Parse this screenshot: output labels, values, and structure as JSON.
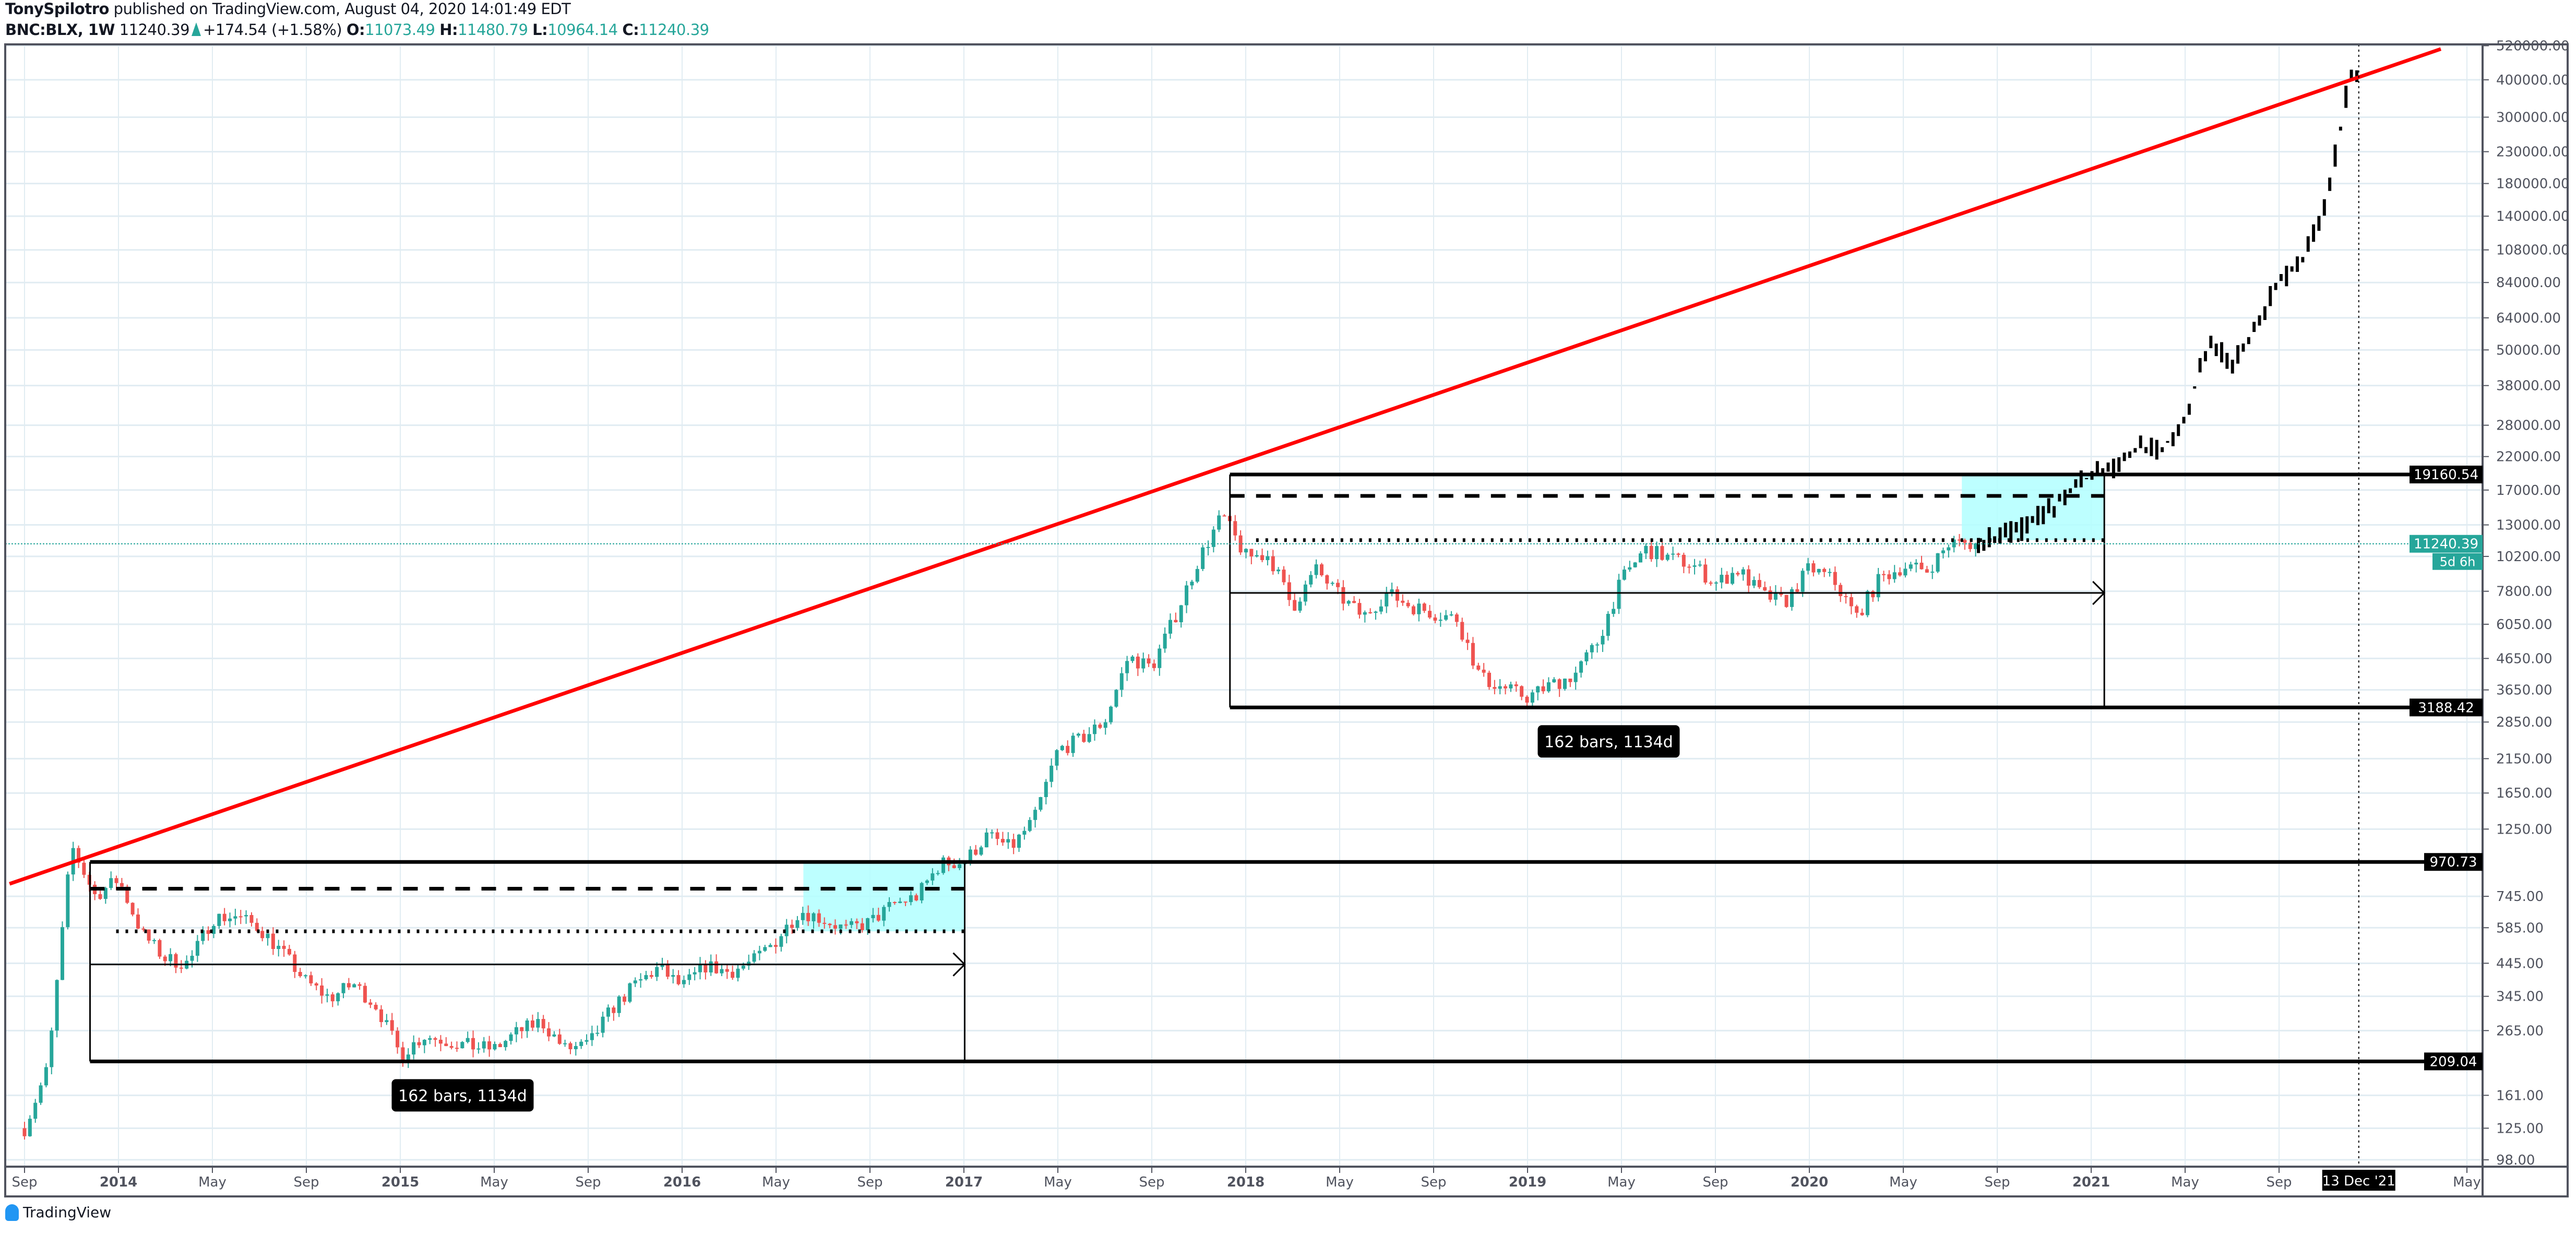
{
  "header": {
    "author": "TonySpilotro",
    "published": "published on TradingView.com, August 04, 2020 14:01:49 EDT",
    "symbol": "BNC:BLX, 1W",
    "last": "11240.39",
    "change": "+174.54 (+1.58%)",
    "open_label": "O:",
    "open": "11073.49",
    "high_label": "H:",
    "high": "11480.79",
    "low_label": "L:",
    "low": "10964.14",
    "close_label": "C:",
    "close": "11240.39"
  },
  "footer": {
    "brand": "TradingView"
  },
  "colors": {
    "up": "#26a69a",
    "down": "#ef5350",
    "projection": "#000000",
    "trendline": "#ff0000",
    "highlight": "#b2ffff",
    "grid": "#e1ecf2",
    "axis": "#50535e"
  },
  "chart_data": {
    "type": "candlestick",
    "scale": "log",
    "grid": true,
    "ylim": [
      98,
      520000
    ],
    "price_ticks": [
      "520000.00",
      "400000.00",
      "300000.00",
      "230000.00",
      "180000.00",
      "140000.00",
      "108000.00",
      "84000.00",
      "64000.00",
      "50000.00",
      "38000.00",
      "28000.00",
      "22000.00",
      "17000.00",
      "13000.00",
      "10200.00",
      "7800.00",
      "6050.00",
      "4650.00",
      "3650.00",
      "2850.00",
      "2150.00",
      "1650.00",
      "1250.00",
      "745.00",
      "585.00",
      "445.00",
      "345.00",
      "265.00",
      "161.00",
      "125.00",
      "98.00"
    ],
    "time_ticks": [
      {
        "label": "Sep",
        "date": "2013-09-01"
      },
      {
        "label": "2014",
        "date": "2014-01-01"
      },
      {
        "label": "May",
        "date": "2014-05-01"
      },
      {
        "label": "Sep",
        "date": "2014-09-01"
      },
      {
        "label": "2015",
        "date": "2015-01-01"
      },
      {
        "label": "May",
        "date": "2015-05-01"
      },
      {
        "label": "Sep",
        "date": "2015-09-01"
      },
      {
        "label": "2016",
        "date": "2016-01-01"
      },
      {
        "label": "May",
        "date": "2016-05-01"
      },
      {
        "label": "Sep",
        "date": "2016-09-01"
      },
      {
        "label": "2017",
        "date": "2017-01-01"
      },
      {
        "label": "May",
        "date": "2017-05-01"
      },
      {
        "label": "Sep",
        "date": "2017-09-01"
      },
      {
        "label": "2018",
        "date": "2018-01-01"
      },
      {
        "label": "May",
        "date": "2018-05-01"
      },
      {
        "label": "Sep",
        "date": "2018-09-01"
      },
      {
        "label": "2019",
        "date": "2019-01-01"
      },
      {
        "label": "May",
        "date": "2019-05-01"
      },
      {
        "label": "Sep",
        "date": "2019-09-01"
      },
      {
        "label": "2020",
        "date": "2020-01-01"
      },
      {
        "label": "May",
        "date": "2020-05-01"
      },
      {
        "label": "Sep",
        "date": "2020-09-01"
      },
      {
        "label": "2021",
        "date": "2021-01-01"
      },
      {
        "label": "May",
        "date": "2021-05-01"
      },
      {
        "label": "Sep",
        "date": "2021-09-01"
      },
      {
        "label": "May",
        "date": "2022-05-01"
      }
    ],
    "crosshair_date": {
      "label": "13 Dec '21",
      "date": "2021-12-13"
    },
    "monthly_closes": [
      [
        "2013-09",
        125
      ],
      [
        "2013-10",
        200
      ],
      [
        "2013-11",
        1100
      ],
      [
        "2013-12",
        750
      ],
      [
        "2014-01",
        850
      ],
      [
        "2014-02",
        560
      ],
      [
        "2014-03",
        460
      ],
      [
        "2014-04",
        445
      ],
      [
        "2014-05",
        630
      ],
      [
        "2014-06",
        640
      ],
      [
        "2014-07",
        585
      ],
      [
        "2014-08",
        480
      ],
      [
        "2014-09",
        385
      ],
      [
        "2014-10",
        340
      ],
      [
        "2014-11",
        380
      ],
      [
        "2014-12",
        320
      ],
      [
        "2015-01",
        220
      ],
      [
        "2015-02",
        255
      ],
      [
        "2015-03",
        245
      ],
      [
        "2015-04",
        235
      ],
      [
        "2015-05",
        230
      ],
      [
        "2015-06",
        262
      ],
      [
        "2015-07",
        285
      ],
      [
        "2015-08",
        230
      ],
      [
        "2015-09",
        236
      ],
      [
        "2015-10",
        313
      ],
      [
        "2015-11",
        377
      ],
      [
        "2015-12",
        430
      ],
      [
        "2016-01",
        370
      ],
      [
        "2016-02",
        437
      ],
      [
        "2016-03",
        416
      ],
      [
        "2016-04",
        450
      ],
      [
        "2016-05",
        530
      ],
      [
        "2016-06",
        670
      ],
      [
        "2016-07",
        625
      ],
      [
        "2016-08",
        575
      ],
      [
        "2016-09",
        610
      ],
      [
        "2016-10",
        700
      ],
      [
        "2016-11",
        745
      ],
      [
        "2016-12",
        960
      ],
      [
        "2017-01",
        970
      ],
      [
        "2017-02",
        1190
      ],
      [
        "2017-03",
        1080
      ],
      [
        "2017-04",
        1350
      ],
      [
        "2017-05",
        2300
      ],
      [
        "2017-06",
        2500
      ],
      [
        "2017-07",
        2870
      ],
      [
        "2017-08",
        4700
      ],
      [
        "2017-09",
        4340
      ],
      [
        "2017-10",
        6450
      ],
      [
        "2017-11",
        10000
      ],
      [
        "2017-12",
        14000
      ],
      [
        "2018-01",
        10200
      ],
      [
        "2018-02",
        10300
      ],
      [
        "2018-03",
        6900
      ],
      [
        "2018-04",
        9200
      ],
      [
        "2018-05",
        7500
      ],
      [
        "2018-06",
        6400
      ],
      [
        "2018-07",
        7700
      ],
      [
        "2018-08",
        7000
      ],
      [
        "2018-09",
        6600
      ],
      [
        "2018-10",
        6300
      ],
      [
        "2018-11",
        4000
      ],
      [
        "2018-12",
        3700
      ],
      [
        "2019-01",
        3450
      ],
      [
        "2019-02",
        3800
      ],
      [
        "2019-03",
        4100
      ],
      [
        "2019-04",
        5300
      ],
      [
        "2019-05",
        8500
      ],
      [
        "2019-06",
        10800
      ],
      [
        "2019-07",
        10100
      ],
      [
        "2019-08",
        9600
      ],
      [
        "2019-09",
        8300
      ],
      [
        "2019-10",
        9200
      ],
      [
        "2019-11",
        7550
      ],
      [
        "2019-12",
        7200
      ],
      [
        "2020-01",
        9350
      ],
      [
        "2020-02",
        8550
      ],
      [
        "2020-03",
        6400
      ],
      [
        "2020-04",
        8600
      ],
      [
        "2020-05",
        9450
      ],
      [
        "2020-06",
        9150
      ],
      [
        "2020-07",
        11350
      ],
      [
        "2020-08",
        11240
      ]
    ],
    "projection_monthly": [
      [
        "2020-08",
        11240
      ],
      [
        "2020-09",
        11800
      ],
      [
        "2020-10",
        12500
      ],
      [
        "2020-11",
        14000
      ],
      [
        "2020-12",
        16500
      ],
      [
        "2021-01",
        19000
      ],
      [
        "2021-02",
        20000
      ],
      [
        "2021-03",
        24000
      ],
      [
        "2021-04",
        23000
      ],
      [
        "2021-05",
        30000
      ],
      [
        "2021-06",
        52000
      ],
      [
        "2021-07",
        45000
      ],
      [
        "2021-08",
        60000
      ],
      [
        "2021-09",
        85000
      ],
      [
        "2021-10",
        100000
      ],
      [
        "2021-11",
        150000
      ],
      [
        "2021-12",
        400000
      ]
    ],
    "current_price": {
      "value": 11240.39,
      "label": "11240.39",
      "countdown": "5d 6h"
    },
    "trendline": {
      "from": [
        "2013-08-12",
        820
      ],
      "to": [
        "2022-03-28",
        507000
      ]
    },
    "ranges": [
      {
        "start": "2013-11-25",
        "end": "2017-01-02",
        "top": 970.73,
        "bottom": 209.04,
        "top_label": "970.73",
        "bottom_label": "209.04",
        "dashed": 790,
        "dotted": 569,
        "arrow": 441,
        "highlight": {
          "start": "2016-06-06",
          "top": 970.73,
          "bottom": 569
        },
        "label": "162 bars, 1134d"
      },
      {
        "start": "2017-12-11",
        "end": "2021-01-18",
        "top": 19160.54,
        "bottom": 3188.42,
        "top_label": "19160.54",
        "bottom_label": "3188.42",
        "dashed": 16250,
        "dotted": 11560,
        "arrow": 7700,
        "highlight": {
          "start": "2020-07-16",
          "top": 19160.54,
          "bottom": 11560
        },
        "label": "162 bars, 1134d"
      }
    ]
  }
}
